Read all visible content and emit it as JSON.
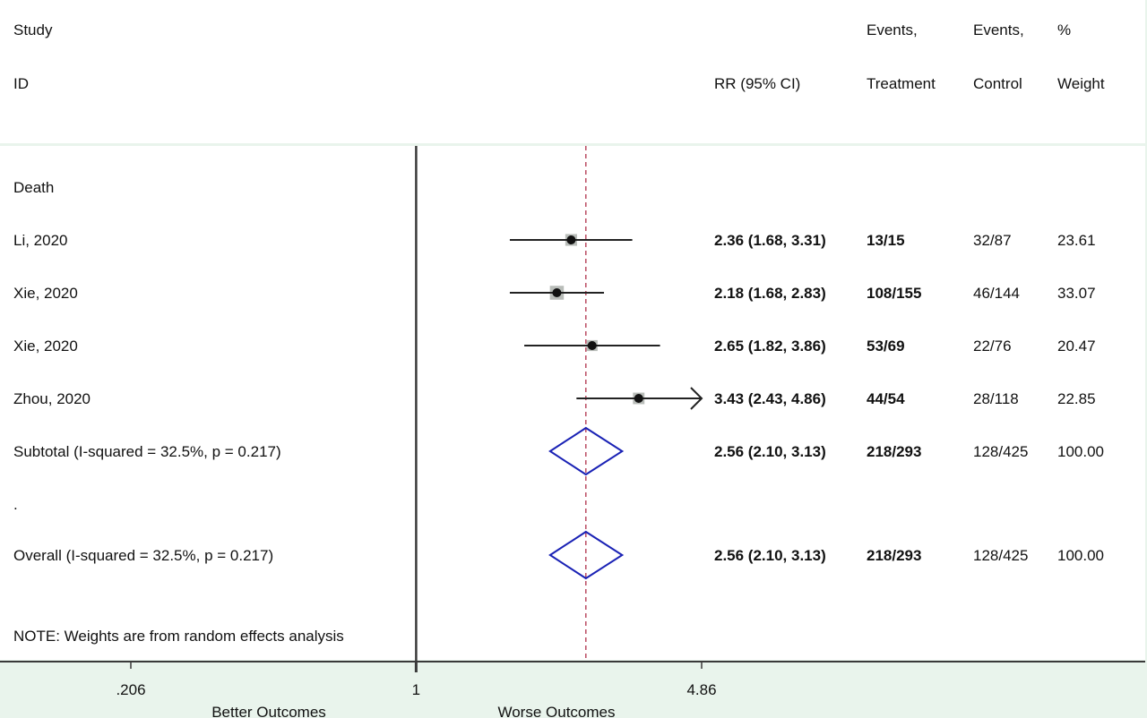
{
  "header": {
    "study": "Study",
    "id": "ID",
    "rr": "RR (95% CI)",
    "events1": "Events,",
    "treatment": "Treatment",
    "events2": "Events,",
    "control": "Control",
    "pct": "%",
    "weight": "Weight"
  },
  "colors": {
    "background": "#e9f4ec",
    "panel": "#ffffff",
    "diamond": "#1a22b5",
    "reference_line": "#b0304a",
    "weight_box": "#b9bdb9"
  },
  "chart_data": {
    "type": "forest",
    "measure": "RR",
    "x_scale": "log",
    "xlim": [
      0.206,
      4.86
    ],
    "null_value": 1,
    "x_ticks": [
      ".206",
      "1",
      "4.86"
    ],
    "x_tick_values": [
      0.206,
      1,
      4.86
    ],
    "x_captions": [
      "Better Outcomes",
      "Worse Outcomes"
    ],
    "group_label": "Death",
    "studies": [
      {
        "id": "Li, 2020",
        "rr": 2.36,
        "lo": 1.68,
        "hi": 3.31,
        "rr_text": "2.36 (1.68, 3.31)",
        "treatment": "13/15",
        "control": "32/87",
        "weight": "23.61",
        "weight_value": 23.61
      },
      {
        "id": "Xie, 2020",
        "rr": 2.18,
        "lo": 1.68,
        "hi": 2.83,
        "rr_text": "2.18 (1.68, 2.83)",
        "treatment": "108/155",
        "control": "46/144",
        "weight": "33.07",
        "weight_value": 33.07
      },
      {
        "id": "Xie, 2020",
        "rr": 2.65,
        "lo": 1.82,
        "hi": 3.86,
        "rr_text": "2.65 (1.82, 3.86)",
        "treatment": "53/69",
        "control": "22/76",
        "weight": "20.47",
        "weight_value": 20.47
      },
      {
        "id": "Zhou, 2020",
        "rr": 3.43,
        "lo": 2.43,
        "hi": 4.86,
        "rr_text": "3.43 (2.43, 4.86)",
        "treatment": "44/54",
        "control": "28/118",
        "weight": "22.85",
        "weight_value": 22.85,
        "arrow": true
      }
    ],
    "subtotal": {
      "label": "Subtotal  (I-squared = 32.5%, p = 0.217)",
      "rr": 2.56,
      "lo": 2.1,
      "hi": 3.13,
      "rr_text": "2.56 (2.10, 3.13)",
      "treatment": "218/293",
      "control": "128/425",
      "weight": "100.00"
    },
    "spacer": ".",
    "overall": {
      "label": "Overall  (I-squared = 32.5%, p = 0.217)",
      "rr": 2.56,
      "lo": 2.1,
      "hi": 3.13,
      "rr_text": "2.56 (2.10, 3.13)",
      "treatment": "218/293",
      "control": "128/425",
      "weight": "100.00"
    },
    "note": "NOTE: Weights are from random effects analysis"
  }
}
